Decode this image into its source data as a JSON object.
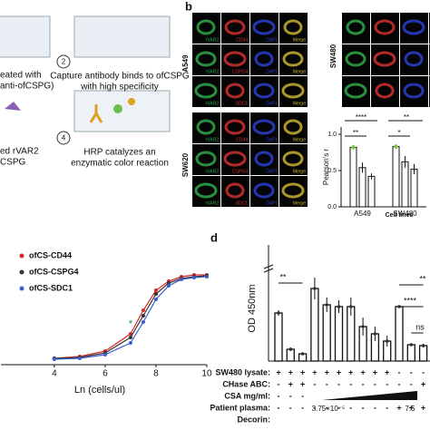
{
  "panel_a": {
    "fragments": [
      "eated with",
      "anti-ofCSPG)",
      "ed rVAR2",
      "CSPG"
    ],
    "steps": [
      {
        "number": "2",
        "lines": [
          "Capture antibody binds to ofCSPG",
          "with high specificity"
        ]
      },
      {
        "number": "4",
        "lines": [
          "HRP catalyzes an",
          "enzymatic color reaction"
        ]
      }
    ]
  },
  "panel_b": {
    "label": "b",
    "cell_lines": [
      "A549",
      "SW620",
      "SW480"
    ],
    "stains": [
      [
        "rVAR2",
        "CD44",
        "DAPI",
        "Merge"
      ],
      [
        "rVAR2",
        "CSPG4",
        "DAPI",
        "Merge"
      ],
      [
        "rVAR2",
        "SDC1",
        "DAPI",
        "Merge"
      ]
    ]
  },
  "panel_d": {
    "label": "d"
  },
  "chart_data": [
    {
      "type": "bar",
      "ylabel": "Pearson's r",
      "xlabel": "Cell lines",
      "categories": [
        "A549",
        "SW480"
      ],
      "series": [
        {
          "color": "#ffffff",
          "values": [
            0.82,
            0.83
          ],
          "errors": [
            0.03,
            0.03
          ]
        },
        {
          "color": "#ffffff",
          "values": [
            0.54,
            0.62
          ],
          "errors": [
            0.07,
            0.08
          ]
        },
        {
          "color": "#ffffff",
          "values": [
            0.42,
            0.52
          ],
          "errors": [
            0.04,
            0.07
          ]
        }
      ],
      "ylim": [
        0,
        1.1
      ],
      "yticks": [
        {
          "value": 0,
          "label": "0.0"
        },
        {
          "value": 0.5,
          "label": "0.5"
        },
        {
          "value": 1,
          "label": "1.0"
        }
      ],
      "annotations": [
        "****",
        "**",
        "**",
        "*"
      ]
    },
    {
      "type": "line",
      "xlabel": "Ln (cells/ul)",
      "x": [
        4,
        5,
        6,
        7,
        7.5,
        8,
        8.5,
        9,
        9.5,
        10
      ],
      "series": [
        {
          "name": "ofCS-CD44",
          "color": "#d62728",
          "values": [
            0.05,
            0.07,
            0.13,
            0.32,
            0.58,
            0.8,
            0.9,
            0.95,
            0.97,
            0.97
          ]
        },
        {
          "name": "ofCS-CSPG4",
          "color": "#333333",
          "values": [
            0.05,
            0.06,
            0.11,
            0.28,
            0.52,
            0.76,
            0.88,
            0.93,
            0.95,
            0.96
          ]
        },
        {
          "name": "ofCS-SDC1",
          "color": "#3a5fcd",
          "values": [
            0.04,
            0.05,
            0.09,
            0.22,
            0.45,
            0.7,
            0.85,
            0.92,
            0.94,
            0.95
          ]
        }
      ],
      "xlim": [
        1.9,
        10.5
      ],
      "xticks": [
        4,
        6,
        8,
        10
      ],
      "ylim": [
        0,
        1.1
      ],
      "annotations": [
        "*"
      ]
    },
    {
      "type": "bar",
      "ylabel": "OD 450nm",
      "values": [
        0.53,
        0.13,
        0.08,
        0.8,
        0.62,
        0.6,
        0.6,
        0.38,
        0.3,
        0.22,
        0.6,
        0.18,
        0.17
      ],
      "errors": [
        0.03,
        0.02,
        0.01,
        0.12,
        0.08,
        0.07,
        0.1,
        0.1,
        0.08,
        0.06,
        0.01,
        0.01,
        0.02
      ],
      "color": "#ffffff",
      "ylim": [
        0,
        1.2
      ],
      "annotations": [
        "**",
        "**",
        "****",
        "ns"
      ],
      "table": {
        "rows": [
          {
            "label": "SW480 lysate:",
            "signs": [
              "+",
              "+",
              "+",
              "+",
              "+",
              "+",
              "+",
              "+",
              "+",
              "+",
              "-",
              "-",
              "-"
            ]
          },
          {
            "label": "CHase ABC:",
            "signs": [
              "-",
              "+",
              "+",
              "-",
              "-",
              "-",
              "-",
              "-",
              "-",
              "-",
              "-",
              "-",
              "+"
            ]
          },
          {
            "label": "CSA mg/ml:",
            "signs": [
              "-",
              "-",
              "-"
            ]
          },
          {
            "label": "Patient plasma:",
            "signs": [
              "-",
              "-",
              "-",
              "-",
              "-",
              "-",
              "-",
              "-",
              "-",
              "-",
              "+",
              "+",
              "+"
            ]
          },
          {
            "label": "Decorin:",
            "signs": []
          }
        ],
        "gradient_labels": [
          "3.75×10⁻⁵",
          "7.5"
        ]
      }
    }
  ]
}
